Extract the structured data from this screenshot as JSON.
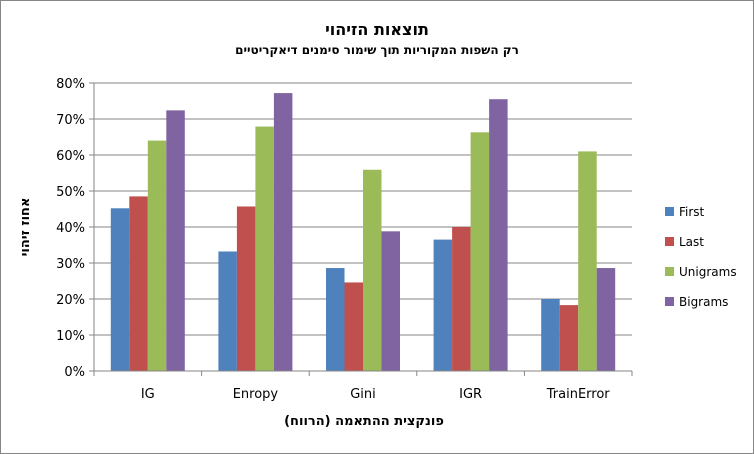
{
  "chart_data": {
    "type": "bar",
    "title": "תוצאות הזיהוי",
    "subtitle": "רק השפות המקוריות תוך שימור סימנים דיאקריטיים",
    "xlabel": "פונקצית ההתאמה (הרווח)",
    "ylabel": "אחוז זיהוי",
    "categories": [
      "IG",
      "Enropy",
      "Gini",
      "IGR",
      "TrainError"
    ],
    "ylim": [
      0,
      80
    ],
    "yticks": [
      "0%",
      "10%",
      "20%",
      "30%",
      "40%",
      "50%",
      "60%",
      "70%",
      "80%"
    ],
    "grid": true,
    "legend_position": "right",
    "series": [
      {
        "name": "First",
        "color": "#4F81BD",
        "values": [
          45.2,
          33.2,
          28.6,
          36.5,
          20.0
        ]
      },
      {
        "name": "Last",
        "color": "#C0504D",
        "values": [
          48.5,
          45.7,
          24.6,
          40.0,
          18.3
        ]
      },
      {
        "name": "Unigrams",
        "color": "#9BBB59",
        "values": [
          64.0,
          67.9,
          55.9,
          66.3,
          61.0
        ]
      },
      {
        "name": "Bigrams",
        "color": "#8064A2",
        "values": [
          72.4,
          77.2,
          38.8,
          75.5,
          28.6
        ]
      }
    ]
  }
}
